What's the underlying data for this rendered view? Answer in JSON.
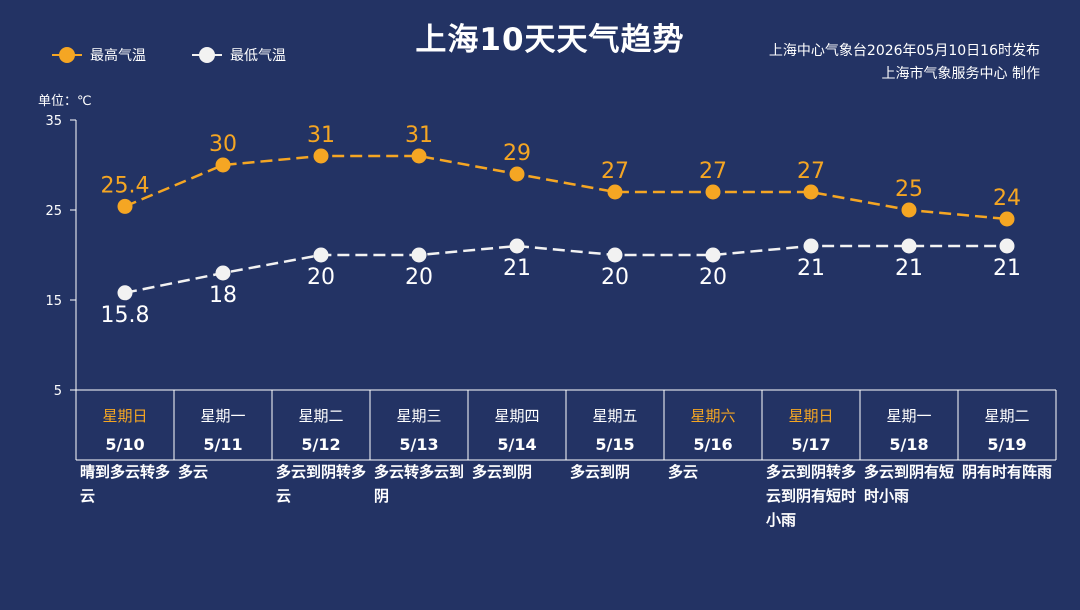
{
  "title": "上海10天天气趋势",
  "source_line1": "上海中心气象台2026年05月10日16时发布",
  "source_line2": "上海市气象服务中心  制作",
  "unit_label": "单位：℃",
  "colors": {
    "background": "#233364",
    "high": "#f5a623",
    "low": "#f2f2f2",
    "weekend": "#f5a623",
    "weekday": "#ffffff"
  },
  "chart_data": {
    "type": "line",
    "title": "上海10天天气趋势",
    "ylabel": "单位：℃",
    "ylim": [
      5,
      35
    ],
    "yticks": [
      5,
      15,
      25,
      35
    ],
    "categories": [
      "5/10",
      "5/11",
      "5/12",
      "5/13",
      "5/14",
      "5/15",
      "5/16",
      "5/17",
      "5/18",
      "5/19"
    ],
    "weekdays": [
      "星期日",
      "星期一",
      "星期二",
      "星期三",
      "星期四",
      "星期五",
      "星期六",
      "星期日",
      "星期一",
      "星期二"
    ],
    "weekend_flags": [
      true,
      false,
      false,
      false,
      false,
      false,
      true,
      true,
      false,
      false
    ],
    "series": [
      {
        "name": "最高气温",
        "color": "#f5a623",
        "values": [
          25.4,
          30,
          31,
          31,
          29,
          27,
          27,
          27,
          25,
          24
        ],
        "labels": [
          "25.4",
          "30",
          "31",
          "31",
          "29",
          "27",
          "27",
          "27",
          "25",
          "24"
        ]
      },
      {
        "name": "最低气温",
        "color": "#f2f2f2",
        "values": [
          15.8,
          18,
          20,
          20,
          21,
          20,
          20,
          21,
          21,
          21
        ],
        "labels": [
          "15.8",
          "18",
          "20",
          "20",
          "21",
          "20",
          "20",
          "21",
          "21",
          "21"
        ]
      }
    ],
    "legend": "top-left",
    "grid": false
  },
  "weather": [
    "晴到多云转多云",
    "多云",
    "多云到阴转多云",
    "多云转多云到阴",
    "多云到阴",
    "多云到阴",
    "多云",
    "多云到阴转多云到阴有短时小雨",
    "多云到阴有短时小雨",
    "阴有时有阵雨"
  ]
}
